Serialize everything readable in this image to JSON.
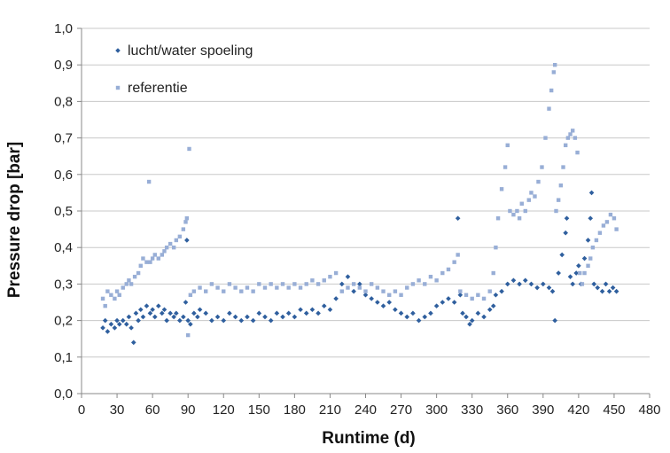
{
  "chart_data": {
    "type": "scatter",
    "title": "",
    "xlabel": "Runtime (d)",
    "ylabel": "Pressure drop [bar]",
    "xlim": [
      0,
      480
    ],
    "ylim": [
      0,
      1.0
    ],
    "x_ticks": [
      "0",
      "30",
      "60",
      "90",
      "120",
      "150",
      "180",
      "210",
      "240",
      "270",
      "300",
      "330",
      "360",
      "390",
      "420",
      "450",
      "480"
    ],
    "y_ticks": [
      "0,0",
      "0,1",
      "0,2",
      "0,3",
      "0,4",
      "0,5",
      "0,6",
      "0,7",
      "0,8",
      "0,9",
      "1,0"
    ],
    "grid": "horizontal",
    "legend_position": "top-left",
    "series": [
      {
        "name": "lucht/water spoeling",
        "color": "#2f5f9e",
        "marker": "diamond",
        "points": [
          [
            18,
            0.18
          ],
          [
            20,
            0.2
          ],
          [
            22,
            0.17
          ],
          [
            25,
            0.19
          ],
          [
            28,
            0.18
          ],
          [
            30,
            0.2
          ],
          [
            32,
            0.19
          ],
          [
            35,
            0.2
          ],
          [
            38,
            0.19
          ],
          [
            40,
            0.21
          ],
          [
            42,
            0.18
          ],
          [
            44,
            0.14
          ],
          [
            46,
            0.22
          ],
          [
            48,
            0.2
          ],
          [
            50,
            0.23
          ],
          [
            52,
            0.21
          ],
          [
            55,
            0.24
          ],
          [
            58,
            0.22
          ],
          [
            60,
            0.23
          ],
          [
            62,
            0.21
          ],
          [
            65,
            0.24
          ],
          [
            68,
            0.22
          ],
          [
            70,
            0.23
          ],
          [
            72,
            0.2
          ],
          [
            75,
            0.22
          ],
          [
            78,
            0.21
          ],
          [
            80,
            0.22
          ],
          [
            83,
            0.2
          ],
          [
            86,
            0.21
          ],
          [
            88,
            0.25
          ],
          [
            89,
            0.42
          ],
          [
            90,
            0.2
          ],
          [
            92,
            0.19
          ],
          [
            95,
            0.22
          ],
          [
            98,
            0.21
          ],
          [
            100,
            0.23
          ],
          [
            105,
            0.22
          ],
          [
            110,
            0.2
          ],
          [
            115,
            0.21
          ],
          [
            120,
            0.2
          ],
          [
            125,
            0.22
          ],
          [
            130,
            0.21
          ],
          [
            135,
            0.2
          ],
          [
            140,
            0.21
          ],
          [
            145,
            0.2
          ],
          [
            150,
            0.22
          ],
          [
            155,
            0.21
          ],
          [
            160,
            0.2
          ],
          [
            165,
            0.22
          ],
          [
            170,
            0.21
          ],
          [
            175,
            0.22
          ],
          [
            180,
            0.21
          ],
          [
            185,
            0.23
          ],
          [
            190,
            0.22
          ],
          [
            195,
            0.23
          ],
          [
            200,
            0.22
          ],
          [
            205,
            0.24
          ],
          [
            210,
            0.23
          ],
          [
            215,
            0.26
          ],
          [
            220,
            0.3
          ],
          [
            225,
            0.32
          ],
          [
            230,
            0.28
          ],
          [
            235,
            0.3
          ],
          [
            240,
            0.27
          ],
          [
            245,
            0.26
          ],
          [
            250,
            0.25
          ],
          [
            255,
            0.24
          ],
          [
            260,
            0.25
          ],
          [
            265,
            0.23
          ],
          [
            270,
            0.22
          ],
          [
            275,
            0.21
          ],
          [
            280,
            0.22
          ],
          [
            285,
            0.2
          ],
          [
            290,
            0.21
          ],
          [
            295,
            0.22
          ],
          [
            300,
            0.24
          ],
          [
            305,
            0.25
          ],
          [
            310,
            0.26
          ],
          [
            315,
            0.25
          ],
          [
            320,
            0.27
          ],
          [
            318,
            0.48
          ],
          [
            322,
            0.22
          ],
          [
            325,
            0.21
          ],
          [
            328,
            0.19
          ],
          [
            330,
            0.2
          ],
          [
            335,
            0.22
          ],
          [
            340,
            0.21
          ],
          [
            345,
            0.23
          ],
          [
            348,
            0.24
          ],
          [
            350,
            0.27
          ],
          [
            355,
            0.28
          ],
          [
            360,
            0.3
          ],
          [
            365,
            0.31
          ],
          [
            370,
            0.3
          ],
          [
            375,
            0.31
          ],
          [
            380,
            0.3
          ],
          [
            385,
            0.29
          ],
          [
            390,
            0.3
          ],
          [
            395,
            0.29
          ],
          [
            398,
            0.28
          ],
          [
            400,
            0.2
          ],
          [
            403,
            0.33
          ],
          [
            406,
            0.38
          ],
          [
            409,
            0.44
          ],
          [
            410,
            0.48
          ],
          [
            413,
            0.32
          ],
          [
            415,
            0.3
          ],
          [
            418,
            0.33
          ],
          [
            420,
            0.35
          ],
          [
            422,
            0.3
          ],
          [
            425,
            0.37
          ],
          [
            428,
            0.42
          ],
          [
            430,
            0.48
          ],
          [
            431,
            0.55
          ],
          [
            433,
            0.3
          ],
          [
            436,
            0.29
          ],
          [
            440,
            0.28
          ],
          [
            443,
            0.3
          ],
          [
            446,
            0.28
          ],
          [
            449,
            0.29
          ],
          [
            452,
            0.28
          ]
        ]
      },
      {
        "name": "referentie",
        "color": "#98aed6",
        "marker": "square",
        "points": [
          [
            18,
            0.26
          ],
          [
            20,
            0.24
          ],
          [
            22,
            0.28
          ],
          [
            25,
            0.27
          ],
          [
            28,
            0.26
          ],
          [
            30,
            0.28
          ],
          [
            32,
            0.27
          ],
          [
            35,
            0.29
          ],
          [
            38,
            0.3
          ],
          [
            40,
            0.31
          ],
          [
            42,
            0.3
          ],
          [
            45,
            0.32
          ],
          [
            48,
            0.33
          ],
          [
            50,
            0.35
          ],
          [
            52,
            0.37
          ],
          [
            55,
            0.36
          ],
          [
            57,
            0.58
          ],
          [
            58,
            0.36
          ],
          [
            60,
            0.37
          ],
          [
            62,
            0.38
          ],
          [
            65,
            0.37
          ],
          [
            68,
            0.38
          ],
          [
            70,
            0.39
          ],
          [
            72,
            0.4
          ],
          [
            75,
            0.41
          ],
          [
            78,
            0.4
          ],
          [
            80,
            0.42
          ],
          [
            83,
            0.43
          ],
          [
            86,
            0.45
          ],
          [
            88,
            0.47
          ],
          [
            89,
            0.48
          ],
          [
            90,
            0.16
          ],
          [
            91,
            0.67
          ],
          [
            92,
            0.27
          ],
          [
            95,
            0.28
          ],
          [
            100,
            0.29
          ],
          [
            105,
            0.28
          ],
          [
            110,
            0.3
          ],
          [
            115,
            0.29
          ],
          [
            120,
            0.28
          ],
          [
            125,
            0.3
          ],
          [
            130,
            0.29
          ],
          [
            135,
            0.28
          ],
          [
            140,
            0.29
          ],
          [
            145,
            0.28
          ],
          [
            150,
            0.3
          ],
          [
            155,
            0.29
          ],
          [
            160,
            0.3
          ],
          [
            165,
            0.29
          ],
          [
            170,
            0.3
          ],
          [
            175,
            0.29
          ],
          [
            180,
            0.3
          ],
          [
            185,
            0.29
          ],
          [
            190,
            0.3
          ],
          [
            195,
            0.31
          ],
          [
            200,
            0.3
          ],
          [
            205,
            0.31
          ],
          [
            210,
            0.32
          ],
          [
            215,
            0.33
          ],
          [
            220,
            0.28
          ],
          [
            225,
            0.29
          ],
          [
            230,
            0.3
          ],
          [
            235,
            0.29
          ],
          [
            240,
            0.28
          ],
          [
            245,
            0.3
          ],
          [
            250,
            0.29
          ],
          [
            255,
            0.28
          ],
          [
            260,
            0.27
          ],
          [
            265,
            0.28
          ],
          [
            270,
            0.27
          ],
          [
            275,
            0.29
          ],
          [
            280,
            0.3
          ],
          [
            285,
            0.31
          ],
          [
            290,
            0.3
          ],
          [
            295,
            0.32
          ],
          [
            300,
            0.31
          ],
          [
            305,
            0.33
          ],
          [
            310,
            0.34
          ],
          [
            315,
            0.36
          ],
          [
            318,
            0.38
          ],
          [
            320,
            0.28
          ],
          [
            325,
            0.27
          ],
          [
            330,
            0.26
          ],
          [
            335,
            0.27
          ],
          [
            340,
            0.26
          ],
          [
            345,
            0.28
          ],
          [
            348,
            0.33
          ],
          [
            350,
            0.4
          ],
          [
            352,
            0.48
          ],
          [
            355,
            0.56
          ],
          [
            358,
            0.62
          ],
          [
            360,
            0.68
          ],
          [
            362,
            0.5
          ],
          [
            365,
            0.49
          ],
          [
            368,
            0.5
          ],
          [
            370,
            0.48
          ],
          [
            372,
            0.52
          ],
          [
            375,
            0.5
          ],
          [
            378,
            0.53
          ],
          [
            380,
            0.55
          ],
          [
            383,
            0.54
          ],
          [
            386,
            0.58
          ],
          [
            389,
            0.62
          ],
          [
            392,
            0.7
          ],
          [
            395,
            0.78
          ],
          [
            397,
            0.83
          ],
          [
            399,
            0.88
          ],
          [
            400,
            0.9
          ],
          [
            401,
            0.5
          ],
          [
            403,
            0.53
          ],
          [
            405,
            0.57
          ],
          [
            407,
            0.62
          ],
          [
            409,
            0.68
          ],
          [
            411,
            0.7
          ],
          [
            413,
            0.71
          ],
          [
            415,
            0.72
          ],
          [
            417,
            0.7
          ],
          [
            419,
            0.66
          ],
          [
            421,
            0.33
          ],
          [
            423,
            0.3
          ],
          [
            425,
            0.33
          ],
          [
            428,
            0.35
          ],
          [
            430,
            0.37
          ],
          [
            432,
            0.4
          ],
          [
            435,
            0.42
          ],
          [
            438,
            0.44
          ],
          [
            441,
            0.46
          ],
          [
            444,
            0.47
          ],
          [
            447,
            0.49
          ],
          [
            450,
            0.48
          ],
          [
            452,
            0.45
          ]
        ]
      }
    ]
  }
}
